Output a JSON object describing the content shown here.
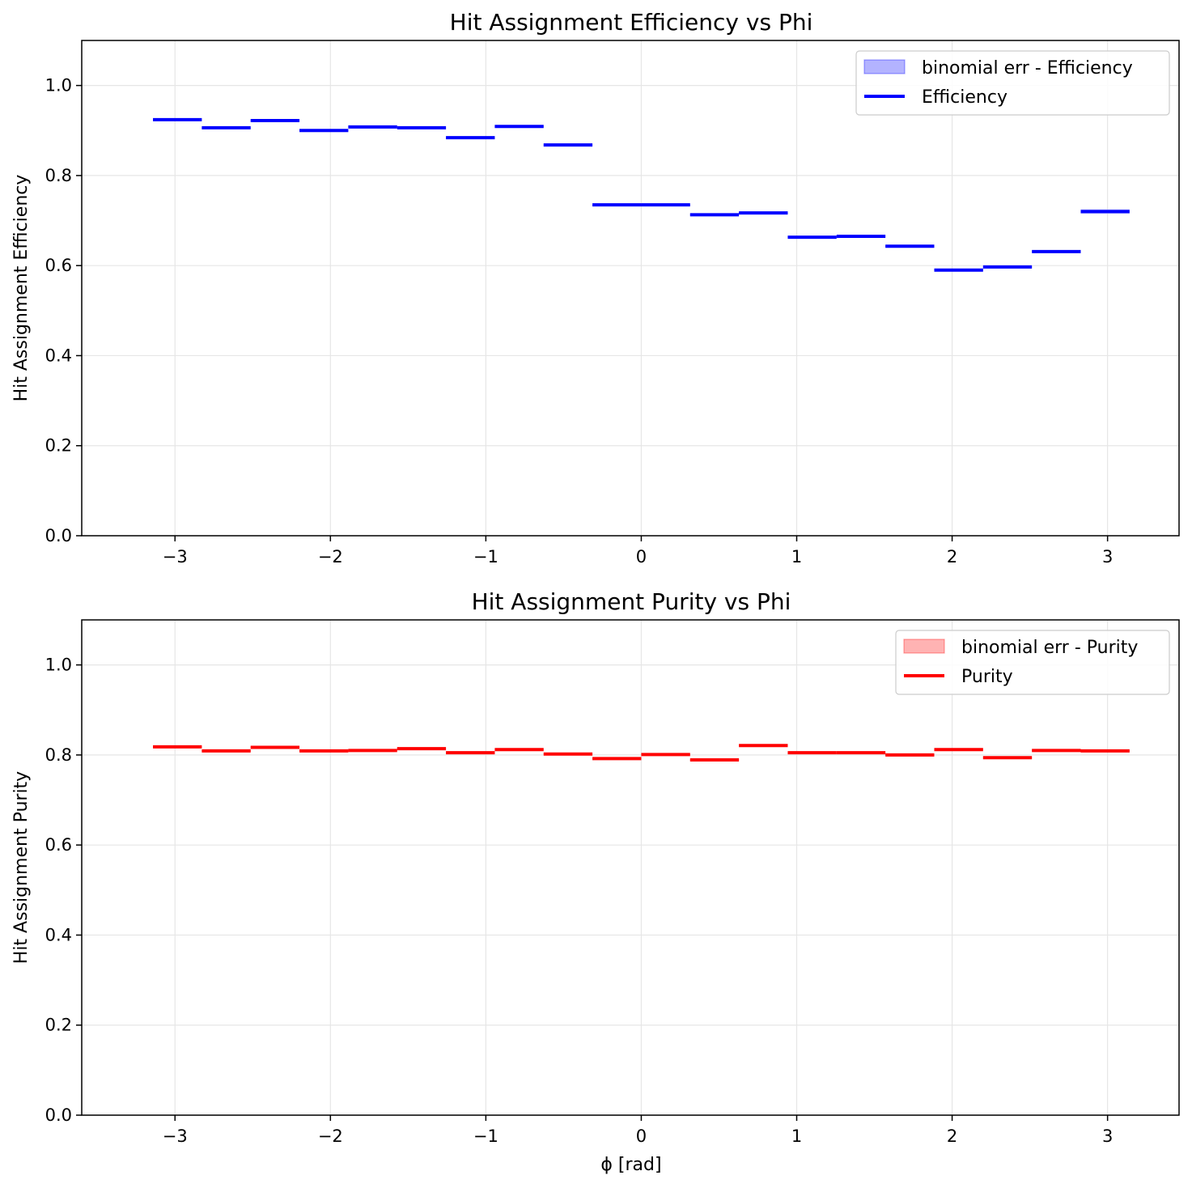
{
  "chart_data": [
    {
      "type": "step",
      "title": "Hit Assignment Efficiency vs Phi",
      "xlabel": "",
      "ylabel": "Hit Assignment Efficiency",
      "xlim": [
        -3.6,
        3.46
      ],
      "ylim": [
        0.0,
        1.1
      ],
      "xticks": [
        -3,
        -2,
        -1,
        0,
        1,
        2,
        3
      ],
      "xtick_labels": [
        "−3",
        "−2",
        "−1",
        "0",
        "1",
        "2",
        "3"
      ],
      "yticks": [
        0.0,
        0.2,
        0.4,
        0.6,
        0.8,
        1.0
      ],
      "ytick_labels": [
        "0.0",
        "0.2",
        "0.4",
        "0.6",
        "0.8",
        "1.0"
      ],
      "grid": true,
      "legend_position": "top-right",
      "color": "#0000ff",
      "band_color": "#b3b3ff",
      "series": [
        {
          "name": "binomial err - Efficiency",
          "kind": "band"
        },
        {
          "name": "Efficiency",
          "kind": "step"
        }
      ],
      "bin_edges": [
        -3.1416,
        -2.8274,
        -2.5133,
        -2.1991,
        -1.885,
        -1.5708,
        -1.2566,
        -0.9425,
        -0.6283,
        -0.3142,
        0.0,
        0.3142,
        0.6283,
        0.9425,
        1.2566,
        1.5708,
        1.885,
        2.1991,
        2.5133,
        2.8274,
        3.1416
      ],
      "values": [
        0.924,
        0.906,
        0.922,
        0.9,
        0.908,
        0.906,
        0.884,
        0.909,
        0.868,
        0.735,
        0.735,
        0.713,
        0.717,
        0.663,
        0.665,
        0.643,
        0.59,
        0.597,
        0.631,
        0.72
      ],
      "errors": [
        0.002,
        0.002,
        0.002,
        0.002,
        0.002,
        0.002,
        0.002,
        0.002,
        0.002,
        0.002,
        0.002,
        0.002,
        0.002,
        0.002,
        0.002,
        0.002,
        0.002,
        0.002,
        0.002,
        0.005
      ]
    },
    {
      "type": "step",
      "title": "Hit Assignment Purity vs Phi",
      "xlabel": "ϕ [rad]",
      "ylabel": "Hit Assignment Purity",
      "xlim": [
        -3.6,
        3.46
      ],
      "ylim": [
        0.0,
        1.1
      ],
      "xticks": [
        -3,
        -2,
        -1,
        0,
        1,
        2,
        3
      ],
      "xtick_labels": [
        "−3",
        "−2",
        "−1",
        "0",
        "1",
        "2",
        "3"
      ],
      "yticks": [
        0.0,
        0.2,
        0.4,
        0.6,
        0.8,
        1.0
      ],
      "ytick_labels": [
        "0.0",
        "0.2",
        "0.4",
        "0.6",
        "0.8",
        "1.0"
      ],
      "grid": true,
      "legend_position": "top-right",
      "color": "#ff0000",
      "band_color": "#ffb3b3",
      "series": [
        {
          "name": "binomial err - Purity",
          "kind": "band"
        },
        {
          "name": "Purity",
          "kind": "step"
        }
      ],
      "bin_edges": [
        -3.1416,
        -2.8274,
        -2.5133,
        -2.1991,
        -1.885,
        -1.5708,
        -1.2566,
        -0.9425,
        -0.6283,
        -0.3142,
        0.0,
        0.3142,
        0.6283,
        0.9425,
        1.2566,
        1.5708,
        1.885,
        2.1991,
        2.5133,
        2.8274,
        3.1416
      ],
      "values": [
        0.818,
        0.809,
        0.817,
        0.809,
        0.81,
        0.814,
        0.805,
        0.812,
        0.802,
        0.792,
        0.801,
        0.789,
        0.821,
        0.805,
        0.805,
        0.8,
        0.812,
        0.794,
        0.81,
        0.809
      ],
      "errors": [
        0.002,
        0.002,
        0.002,
        0.002,
        0.002,
        0.002,
        0.002,
        0.002,
        0.002,
        0.002,
        0.002,
        0.002,
        0.002,
        0.002,
        0.002,
        0.002,
        0.002,
        0.002,
        0.002,
        0.003
      ]
    }
  ]
}
